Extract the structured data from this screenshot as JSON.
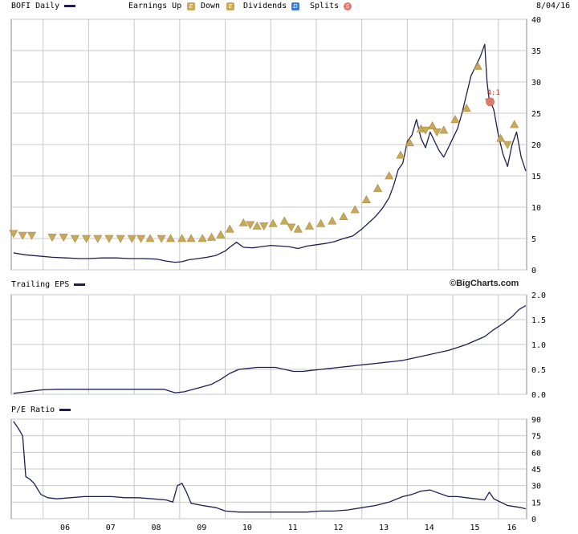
{
  "header": {
    "series_label": "BOFI Daily",
    "earnings_up_label": "Earnings Up",
    "earnings_down_label": "Down",
    "dividends_label": "Dividends",
    "splits_label": "Splits",
    "date": "8/04/16",
    "earnings_icon_glyph": "E",
    "dividends_icon_glyph": "D",
    "splits_icon_glyph": "S"
  },
  "brand": "©BigCharts.com",
  "colors": {
    "line": "#1f1f4f",
    "earnings": "#c9a85a",
    "dividends": "#3a7bd5",
    "splits": "#e07a6a",
    "grid": "#c8c8c8"
  },
  "chart_data": [
    {
      "type": "line",
      "name": "price",
      "title": "BOFI Daily",
      "x_ticks": [
        "06",
        "07",
        "08",
        "09",
        "10",
        "11",
        "12",
        "13",
        "14",
        "15",
        "16"
      ],
      "y_ticks": [
        0,
        5,
        10,
        15,
        20,
        25,
        30,
        35,
        40
      ],
      "ylim": [
        0,
        40
      ],
      "grid": true,
      "x": [
        2005.35,
        2005.6,
        2005.9,
        2006.2,
        2006.5,
        2006.8,
        2007.0,
        2007.3,
        2007.6,
        2007.9,
        2008.2,
        2008.5,
        2008.7,
        2008.9,
        2009.05,
        2009.2,
        2009.4,
        2009.6,
        2009.8,
        2010.0,
        2010.1,
        2010.25,
        2010.4,
        2010.6,
        2010.8,
        2011.0,
        2011.2,
        2011.4,
        2011.6,
        2011.8,
        2012.0,
        2012.2,
        2012.4,
        2012.6,
        2012.8,
        2013.0,
        2013.15,
        2013.3,
        2013.45,
        2013.6,
        2013.7,
        2013.8,
        2013.9,
        2014.0,
        2014.1,
        2014.2,
        2014.3,
        2014.4,
        2014.5,
        2014.6,
        2014.7,
        2014.8,
        2014.9,
        2015.0,
        2015.1,
        2015.2,
        2015.3,
        2015.4,
        2015.5,
        2015.6,
        2015.7,
        2015.75,
        2015.8,
        2015.85,
        2015.9,
        2016.0,
        2016.1,
        2016.2,
        2016.3,
        2016.4,
        2016.5,
        2016.6
      ],
      "y": [
        2.7,
        2.4,
        2.2,
        2.0,
        1.9,
        1.8,
        1.8,
        1.9,
        1.9,
        1.8,
        1.8,
        1.7,
        1.4,
        1.2,
        1.3,
        1.6,
        1.8,
        2.0,
        2.3,
        3.0,
        3.6,
        4.4,
        3.6,
        3.5,
        3.7,
        3.9,
        3.8,
        3.7,
        3.4,
        3.8,
        4.0,
        4.2,
        4.5,
        5.0,
        5.4,
        6.5,
        7.5,
        8.5,
        9.8,
        11.5,
        13.5,
        16.0,
        17.0,
        20.5,
        21.5,
        24.0,
        21.0,
        19.5,
        22.0,
        20.5,
        19.0,
        18.0,
        19.5,
        21.0,
        22.5,
        25.0,
        28.0,
        31.0,
        32.5,
        34.0,
        36.0,
        30.0,
        27.0,
        26.5,
        25.5,
        21.5,
        18.5,
        16.5,
        20.0,
        22.0,
        18.0,
        15.8
      ],
      "earnings_up": [
        [
          2008.35,
          5.0
        ],
        [
          2008.8,
          5.0
        ],
        [
          2009.05,
          5.0
        ],
        [
          2009.25,
          5.0
        ],
        [
          2009.5,
          5.0
        ],
        [
          2009.7,
          5.2
        ],
        [
          2009.9,
          5.6
        ],
        [
          2010.1,
          6.5
        ],
        [
          2010.4,
          7.5
        ],
        [
          2010.7,
          7.0
        ],
        [
          2011.05,
          7.4
        ],
        [
          2011.3,
          7.8
        ],
        [
          2011.6,
          6.5
        ],
        [
          2011.85,
          7.0
        ],
        [
          2012.1,
          7.4
        ],
        [
          2012.35,
          7.8
        ],
        [
          2012.6,
          8.5
        ],
        [
          2012.85,
          9.6
        ],
        [
          2013.1,
          11.2
        ],
        [
          2013.35,
          13.0
        ],
        [
          2013.6,
          15.0
        ],
        [
          2013.85,
          18.3
        ],
        [
          2014.05,
          20.3
        ],
        [
          2014.3,
          22.5
        ],
        [
          2014.55,
          23.0
        ],
        [
          2014.8,
          22.3
        ],
        [
          2015.05,
          24.0
        ],
        [
          2015.3,
          25.8
        ],
        [
          2015.55,
          32.5
        ],
        [
          2016.05,
          21.0
        ],
        [
          2016.35,
          23.2
        ]
      ],
      "earnings_down": [
        [
          2005.35,
          5.8
        ],
        [
          2005.55,
          5.5
        ],
        [
          2005.75,
          5.5
        ],
        [
          2006.2,
          5.2
        ],
        [
          2006.45,
          5.2
        ],
        [
          2006.7,
          5.0
        ],
        [
          2006.95,
          5.0
        ],
        [
          2007.2,
          5.0
        ],
        [
          2007.45,
          5.0
        ],
        [
          2007.7,
          5.0
        ],
        [
          2007.95,
          5.0
        ],
        [
          2008.15,
          5.0
        ],
        [
          2008.6,
          5.0
        ],
        [
          2010.55,
          7.2
        ],
        [
          2010.85,
          7.0
        ],
        [
          2011.45,
          6.8
        ],
        [
          2014.4,
          22.3
        ],
        [
          2014.65,
          22.0
        ],
        [
          2015.8,
          26.8
        ],
        [
          2016.2,
          20.0
        ]
      ],
      "splits": [
        {
          "x": 2015.82,
          "y": 26.8,
          "label": "4:1"
        }
      ]
    },
    {
      "type": "line",
      "name": "eps",
      "title": "Trailing EPS",
      "y_ticks": [
        0.0,
        0.5,
        1.0,
        1.5,
        2.0
      ],
      "ylim": [
        0,
        2.0
      ],
      "grid": true,
      "x": [
        2005.35,
        2005.55,
        2005.8,
        2006.0,
        2006.3,
        2006.6,
        2006.9,
        2007.2,
        2007.5,
        2007.8,
        2008.1,
        2008.4,
        2008.65,
        2008.9,
        2009.1,
        2009.3,
        2009.5,
        2009.7,
        2009.9,
        2010.1,
        2010.3,
        2010.5,
        2010.7,
        2010.9,
        2011.1,
        2011.3,
        2011.5,
        2011.7,
        2011.9,
        2012.1,
        2012.3,
        2012.5,
        2012.7,
        2012.9,
        2013.1,
        2013.3,
        2013.5,
        2013.7,
        2013.9,
        2014.1,
        2014.3,
        2014.5,
        2014.7,
        2014.9,
        2015.1,
        2015.3,
        2015.5,
        2015.7,
        2015.9,
        2016.1,
        2016.3,
        2016.45,
        2016.6
      ],
      "y": [
        0.02,
        0.04,
        0.07,
        0.09,
        0.1,
        0.1,
        0.1,
        0.1,
        0.1,
        0.1,
        0.1,
        0.1,
        0.1,
        0.03,
        0.05,
        0.1,
        0.15,
        0.2,
        0.3,
        0.42,
        0.5,
        0.52,
        0.54,
        0.54,
        0.54,
        0.5,
        0.46,
        0.46,
        0.48,
        0.5,
        0.52,
        0.54,
        0.56,
        0.58,
        0.6,
        0.62,
        0.64,
        0.66,
        0.68,
        0.72,
        0.76,
        0.8,
        0.84,
        0.88,
        0.94,
        1.0,
        1.08,
        1.16,
        1.3,
        1.42,
        1.56,
        1.7,
        1.78
      ]
    },
    {
      "type": "line",
      "name": "pe",
      "title": "P/E Ratio",
      "y_ticks": [
        0,
        15,
        30,
        45,
        60,
        75,
        90
      ],
      "ylim": [
        0,
        90
      ],
      "grid": true,
      "x": [
        2005.35,
        2005.45,
        2005.55,
        2005.62,
        2005.7,
        2005.8,
        2005.95,
        2006.1,
        2006.3,
        2006.6,
        2006.9,
        2007.2,
        2007.5,
        2007.8,
        2008.1,
        2008.4,
        2008.7,
        2008.85,
        2008.95,
        2009.05,
        2009.1,
        2009.15,
        2009.25,
        2009.5,
        2009.8,
        2010.0,
        2010.3,
        2010.6,
        2010.9,
        2011.2,
        2011.5,
        2011.8,
        2012.1,
        2012.4,
        2012.7,
        2013.0,
        2013.3,
        2013.6,
        2013.9,
        2014.1,
        2014.3,
        2014.5,
        2014.7,
        2014.9,
        2015.1,
        2015.3,
        2015.5,
        2015.7,
        2015.8,
        2015.9,
        2016.0,
        2016.1,
        2016.2,
        2016.35,
        2016.5,
        2016.6
      ],
      "y": [
        88,
        82,
        75,
        38,
        36,
        32,
        22,
        19,
        18,
        19,
        20,
        20,
        20,
        19,
        19,
        18,
        17,
        15,
        30,
        32,
        28,
        24,
        14,
        12,
        10,
        7,
        6,
        6,
        6,
        6,
        6,
        6,
        7,
        7,
        8,
        10,
        12,
        15,
        20,
        22,
        25,
        26,
        23,
        20,
        20,
        19,
        18,
        17,
        24,
        18,
        16,
        14,
        12,
        11,
        10,
        9
      ]
    }
  ]
}
